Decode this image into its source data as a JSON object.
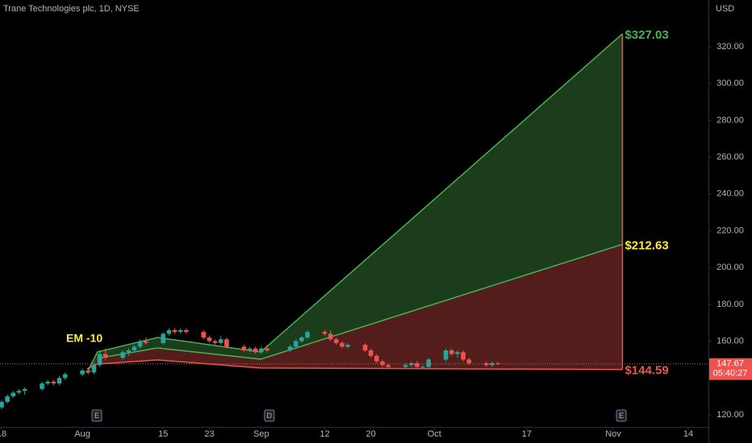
{
  "chart_data": {
    "type": "candlestick",
    "title": "Trane Technologies plc, 1D, NYSE",
    "y_axis_label": "USD",
    "up_color": "#26a69a",
    "down_color": "#ef5350",
    "grid": false,
    "xlim": [
      -0.28,
      122.5
    ],
    "xticks": [
      {
        "value": 0,
        "label": "18"
      },
      {
        "value": 14,
        "label": "Aug"
      },
      {
        "value": 28,
        "label": "15"
      },
      {
        "value": 36,
        "label": "23"
      },
      {
        "value": 45,
        "label": "Sep"
      },
      {
        "value": 56,
        "label": "12"
      },
      {
        "value": 64,
        "label": "20"
      },
      {
        "value": 75,
        "label": "Oct"
      },
      {
        "value": 91,
        "label": "17"
      },
      {
        "value": 106,
        "label": "Nov"
      },
      {
        "value": 119,
        "label": "14"
      }
    ],
    "ylim": [
      113.4,
      345.4
    ],
    "yticks": [
      {
        "value": 120,
        "label": "120.00"
      },
      {
        "value": 160,
        "label": "160.00"
      },
      {
        "value": 180,
        "label": "180.00"
      },
      {
        "value": 200,
        "label": "200.00"
      },
      {
        "value": 220,
        "label": "220.00"
      },
      {
        "value": 240,
        "label": "240.00"
      },
      {
        "value": 260,
        "label": "260.00"
      },
      {
        "value": 280,
        "label": "280.00"
      },
      {
        "value": 300,
        "label": "300.00"
      },
      {
        "value": 320,
        "label": "320.00"
      }
    ],
    "x": [
      0,
      1,
      2,
      3,
      4,
      7,
      8,
      9,
      10,
      11,
      14,
      15,
      16,
      17,
      18,
      21,
      22,
      23,
      24,
      25,
      28,
      29,
      30,
      31,
      32,
      35,
      36,
      37,
      38,
      39,
      42,
      43,
      44,
      45,
      46,
      50,
      51,
      52,
      53,
      56,
      57,
      58,
      59,
      60,
      63,
      64,
      65,
      66,
      67,
      70,
      71,
      72,
      73,
      74,
      77,
      78,
      79,
      80,
      81,
      84,
      85,
      86
    ],
    "open": [
      124,
      127,
      130,
      132,
      133,
      134,
      137,
      138,
      137,
      140,
      142,
      144,
      143,
      147,
      153,
      151,
      154,
      155,
      157,
      160,
      159,
      164,
      166,
      165,
      166,
      165,
      162,
      160,
      159,
      161,
      157,
      155,
      156,
      154,
      156,
      155,
      157,
      160,
      162,
      165,
      164,
      161,
      159,
      157,
      158,
      155,
      152,
      149,
      147,
      146,
      147,
      148,
      146,
      146,
      150,
      155,
      153,
      154,
      150,
      148,
      147,
      148
    ],
    "high": [
      128,
      131,
      133,
      134,
      135,
      138,
      139,
      139,
      141,
      143,
      145,
      145,
      148,
      155,
      156,
      155,
      156,
      158,
      161,
      162,
      165,
      167,
      167,
      167,
      167,
      166,
      163,
      161,
      163,
      162,
      158,
      157,
      157,
      157,
      158,
      158,
      161,
      163,
      166,
      166,
      166,
      162,
      160,
      159,
      159,
      156,
      153,
      150,
      148,
      148,
      149,
      149,
      147,
      151,
      156,
      156,
      155,
      155,
      151,
      149,
      149,
      149
    ],
    "low": [
      123,
      126,
      129,
      131,
      131,
      133,
      136,
      136,
      136,
      139,
      141,
      142,
      142,
      146,
      150,
      150,
      152,
      154,
      156,
      158,
      158,
      163,
      164,
      164,
      164,
      161,
      159,
      158,
      158,
      156,
      154,
      154,
      153,
      153,
      154,
      154,
      156,
      159,
      161,
      163,
      160,
      158,
      156,
      156,
      154,
      151,
      148,
      146,
      145,
      145,
      146,
      145,
      145,
      145,
      149,
      152,
      151,
      149,
      147,
      146,
      146,
      147
    ],
    "close": [
      127,
      130,
      132,
      133,
      134,
      137,
      138,
      137,
      140,
      142,
      144,
      143,
      147,
      153,
      151,
      154,
      155,
      157,
      160,
      159,
      164,
      166,
      165,
      166,
      165,
      162,
      160,
      159,
      161,
      157,
      155,
      156,
      154,
      156,
      155,
      157,
      160,
      162,
      165,
      164,
      161,
      159,
      157,
      158,
      155,
      152,
      149,
      147,
      146,
      147,
      148,
      146,
      146,
      150,
      155,
      153,
      154,
      150,
      148,
      147,
      148,
      147.67
    ],
    "countdown": "05:40:27",
    "overlays": [
      {
        "color": "#4caf50",
        "label_color": "#4caf50",
        "end_label": "$327.03",
        "x": [
          14.8,
          16.6,
          27.0,
          44.9,
          107.6
        ],
        "values": [
          142.8,
          154.1,
          162.0,
          154.1,
          327.03
        ]
      },
      {
        "color": "#4caf50",
        "label_color": "#ffeb3b",
        "end_label": "$212.63",
        "x": [
          16.6,
          27.0,
          44.9,
          107.6
        ],
        "values": [
          150.6,
          156.3,
          150.2,
          212.63
        ]
      },
      {
        "color": "#ef5350",
        "label_color": "#ef5350",
        "end_label": "$144.59",
        "x": [
          14.8,
          16.6,
          27.0,
          44.9,
          107.6
        ],
        "values": [
          145.0,
          147.6,
          149.8,
          145.4,
          144.59
        ]
      }
    ],
    "annotation": "EM -10",
    "events": [
      {
        "x": 16.5,
        "label": "E"
      },
      {
        "x": 46.4,
        "label": "D"
      },
      {
        "x": 107.4,
        "label": "E"
      }
    ]
  }
}
